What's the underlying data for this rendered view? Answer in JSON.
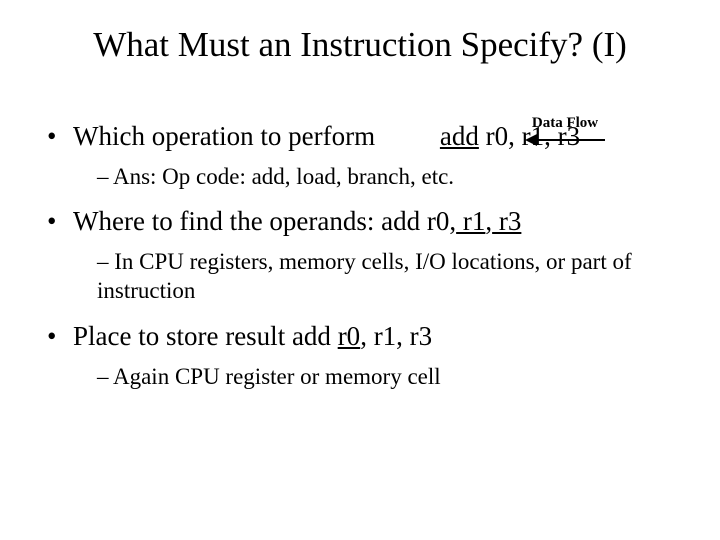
{
  "title": "What Must an Instruction Specify? (I)",
  "dataflow": {
    "label": "Data Flow"
  },
  "bullets": {
    "b1": {
      "text": "Which operation to perform",
      "code_op": "add",
      "code_regs": " r0, r1, r3",
      "sub": "Ans: Op code: add, load, branch, etc."
    },
    "b2": {
      "text_a": "Where to find the operands: add r0,",
      "r1": " r1",
      "comma": ",",
      "r3": " r3",
      "sub": "In CPU registers, memory cells, I/O locations, or part of instruction"
    },
    "b3": {
      "text_a": "Place to store result  add ",
      "r0": "r0",
      "comma": ",",
      "rest": " r1, r3",
      "sub": "Again CPU register or memory cell"
    }
  }
}
